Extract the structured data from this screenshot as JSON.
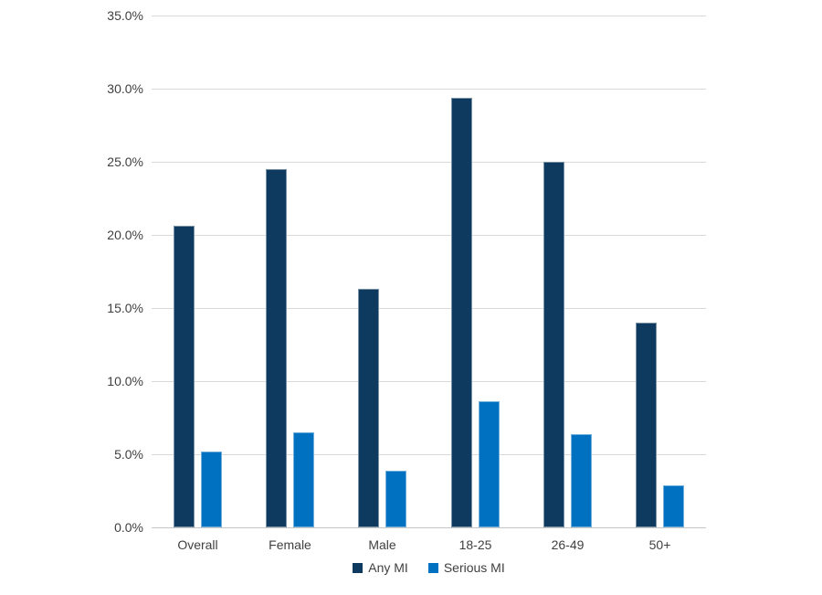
{
  "chart_data": {
    "type": "bar",
    "title": "",
    "categories": [
      "Overall",
      "Female",
      "Male",
      "18-25",
      "26-49",
      "50+"
    ],
    "series": [
      {
        "name": "Any MI",
        "color": "#0d3a5e",
        "values": [
          20.6,
          24.5,
          16.3,
          29.4,
          25.0,
          14.0
        ]
      },
      {
        "name": "Serious MI",
        "color": "#0070c0",
        "values": [
          5.2,
          6.5,
          3.9,
          8.6,
          6.4,
          2.9
        ]
      }
    ],
    "xlabel": "",
    "ylabel": "",
    "ylim": [
      0,
      35
    ],
    "ytick_step": 5,
    "ytick_labels": [
      "0.0%",
      "5.0%",
      "10.0%",
      "15.0%",
      "20.0%",
      "25.0%",
      "30.0%",
      "35.0%"
    ],
    "grid": true,
    "legend_position": "bottom-center",
    "background_color": "#ffffff",
    "gridline_color": "#d9d9d9",
    "label_color": "#404040"
  }
}
